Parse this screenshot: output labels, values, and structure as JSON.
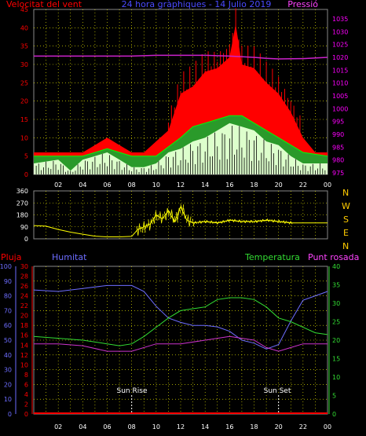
{
  "colors": {
    "red": "#ff0000",
    "magenta": "#ff00ff",
    "blue": "#4a4aff",
    "green": "#00ff00",
    "lightgreen": "#ddffcc",
    "yellow": "#ffff00",
    "grid": "#ffff00",
    "dir": "#ffcc00",
    "pressure": "#cc22cc",
    "humidity": "#6d6dff",
    "temp": "#33dd33",
    "dew": "#cc33cc"
  },
  "header": {
    "left": "Velocitat del vent",
    "center": "24 hora gràphiques - 14 Julio 2019",
    "right": "Pressió"
  },
  "panel3": {
    "left1": "Pluja",
    "left2": "Humitat",
    "right1": "Temperatura",
    "right2": "Punt rosada"
  },
  "compass": [
    "N",
    "W",
    "S",
    "E",
    "N"
  ],
  "x_ticks": [
    "02",
    "04",
    "06",
    "08",
    "10",
    "12",
    "14",
    "16",
    "18",
    "20",
    "22",
    "00"
  ],
  "wind_axis": [
    "0",
    "5",
    "10",
    "15",
    "20",
    "25",
    "30",
    "35",
    "40",
    "45"
  ],
  "pressure_axis": [
    "975",
    "980",
    "985",
    "990",
    "995",
    "1000",
    "1005",
    "1010",
    "1015",
    "1020",
    "1025",
    "1030",
    "1035"
  ],
  "dir_axis": [
    "0",
    "90",
    "180",
    "270",
    "360"
  ],
  "rain_axis": [
    "0",
    "2",
    "4",
    "6",
    "8",
    "10",
    "12",
    "14",
    "16",
    "18",
    "20",
    "22",
    "24",
    "26",
    "28",
    "30"
  ],
  "hum_axis": [
    "0",
    "10",
    "20",
    "30",
    "40",
    "50",
    "60",
    "70",
    "80",
    "90",
    "100"
  ],
  "temp_axis": [
    "0",
    "5",
    "10",
    "15",
    "20",
    "25",
    "30",
    "35",
    "40"
  ],
  "sun": {
    "rise": "Sun Rise",
    "set": "Sun Set"
  },
  "chart_data": [
    {
      "type": "line",
      "title": "24 hora gràphiques - 14 Julio 2019",
      "ylabel": "Velocitat del vent",
      "y2label": "Pressió",
      "ylim": [
        0,
        45
      ],
      "y2lim": [
        975,
        1035
      ],
      "x_range_hours": [
        0,
        24
      ],
      "series": [
        {
          "name": "Velocitat del vent",
          "kind": "gust",
          "x": [
            0,
            1,
            2,
            3,
            4,
            5,
            6,
            7,
            8,
            9,
            10,
            11,
            12,
            13,
            14,
            15,
            16,
            16.5,
            17,
            18,
            19,
            20,
            21,
            22,
            23,
            24
          ],
          "values": [
            6,
            6,
            6,
            6,
            6,
            8,
            10,
            8,
            6,
            6,
            9,
            12,
            22,
            24,
            28,
            29,
            32,
            41,
            30,
            29,
            25,
            22,
            17,
            10,
            6,
            6
          ]
        },
        {
          "name": "Velocitat del vent",
          "kind": "average",
          "x": [
            0,
            2,
            4,
            6,
            8,
            10,
            12,
            13,
            14,
            15,
            16,
            17,
            18,
            19,
            20,
            21,
            22,
            24
          ],
          "values": [
            5,
            5,
            5,
            7,
            5,
            5,
            10,
            13,
            14,
            15,
            16,
            16,
            14,
            12,
            10,
            8,
            6,
            5
          ]
        },
        {
          "name": "Velocitat del vent",
          "kind": "speed",
          "x": [
            0,
            2,
            3,
            4,
            5,
            6,
            7,
            8,
            9,
            10,
            11,
            12,
            13,
            14,
            15,
            16,
            17,
            18,
            19,
            20,
            21,
            22,
            24
          ],
          "values": [
            3,
            4,
            1,
            4,
            5,
            6,
            4,
            2,
            2,
            3,
            6,
            7,
            9,
            10,
            12,
            14,
            13,
            12,
            9,
            8,
            5,
            3,
            3
          ]
        },
        {
          "name": "Pressió",
          "x": [
            0,
            2,
            4,
            6,
            8,
            10,
            12,
            14,
            16,
            18,
            19,
            20,
            22,
            24
          ],
          "values": [
            1020.5,
            1020.5,
            1020.5,
            1020.5,
            1020.5,
            1020.8,
            1020.8,
            1020.8,
            1020.5,
            1020,
            1019.6,
            1019.4,
            1019.5,
            1020
          ]
        }
      ]
    },
    {
      "type": "line",
      "title": "",
      "ylim": [
        0,
        360
      ],
      "x_range_hours": [
        0,
        24
      ],
      "series": [
        {
          "name": "",
          "x": [
            0,
            1,
            2,
            3,
            4,
            5,
            6,
            7,
            8,
            8.5,
            9,
            9.5,
            10,
            10.5,
            11,
            11.5,
            12,
            12.5,
            13,
            14,
            15,
            16,
            17,
            18,
            19,
            20,
            21,
            22,
            23,
            24
          ],
          "values": [
            100,
            95,
            70,
            50,
            35,
            20,
            15,
            15,
            18,
            70,
            90,
            110,
            180,
            150,
            210,
            130,
            240,
            140,
            120,
            130,
            120,
            140,
            130,
            130,
            140,
            130,
            120,
            120,
            120,
            120
          ]
        }
      ]
    },
    {
      "type": "line",
      "title": "",
      "ylim": [
        0,
        100
      ],
      "y_left2lim": [
        0,
        30
      ],
      "y2lim": [
        0,
        40
      ],
      "x_range_hours": [
        0,
        24
      ],
      "series": [
        {
          "name": "Pluja",
          "x": [
            0,
            24
          ],
          "values": [
            0,
            0
          ]
        },
        {
          "name": "Humitat",
          "x": [
            0,
            2,
            4,
            6,
            8,
            9,
            10,
            11,
            12,
            13,
            14,
            15,
            16,
            17,
            18,
            19,
            20,
            21,
            22,
            23,
            24
          ],
          "values": [
            84,
            83,
            85,
            87,
            87,
            83,
            73,
            65,
            62,
            60,
            60,
            59,
            56,
            50,
            48,
            44,
            47,
            63,
            77,
            80,
            83
          ]
        },
        {
          "name": "Temperatura",
          "x": [
            0,
            2,
            4,
            6,
            7,
            8,
            9,
            10,
            11,
            12,
            13,
            14,
            15,
            16,
            17,
            18,
            19,
            20,
            21,
            22,
            23,
            24
          ],
          "values": [
            21,
            20.5,
            20,
            19,
            18.5,
            19,
            21,
            23.5,
            26,
            28,
            28.5,
            29,
            31,
            31.5,
            31.5,
            31,
            29,
            26,
            25,
            23.5,
            22,
            21.5
          ]
        },
        {
          "name": "Punt rosada",
          "x": [
            0,
            2,
            4,
            6,
            8,
            10,
            12,
            14,
            16,
            18,
            19,
            20,
            21,
            22,
            23,
            24
          ],
          "values": [
            19,
            19,
            18.5,
            17,
            17,
            19,
            19,
            20,
            21,
            20,
            18,
            17,
            18,
            19,
            19,
            19
          ]
        }
      ]
    }
  ]
}
